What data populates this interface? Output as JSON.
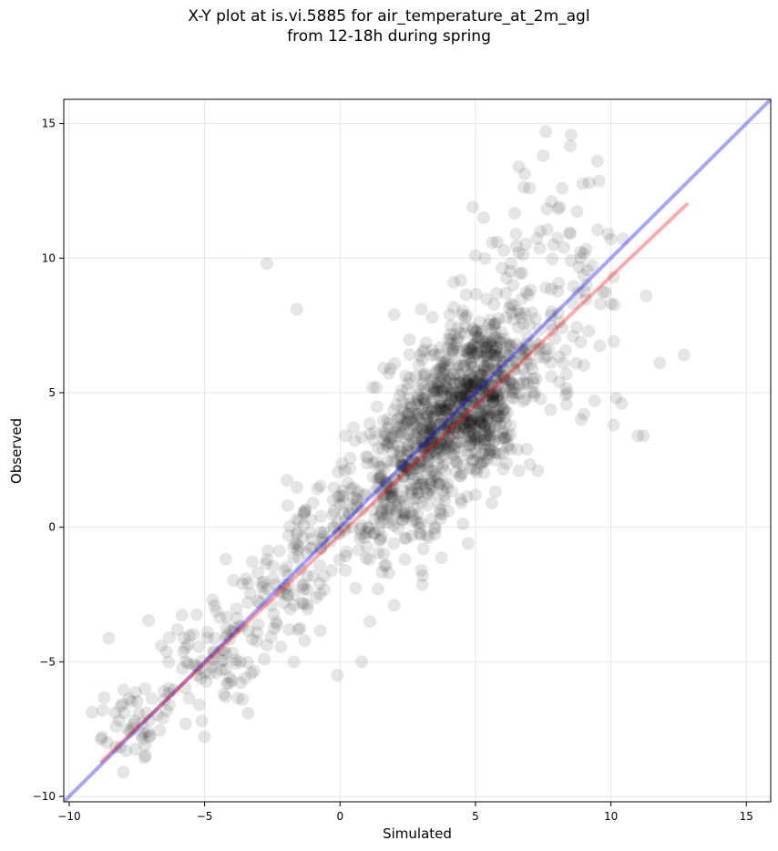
{
  "chart_data": {
    "type": "scatter",
    "title_line1": "X-Y plot at is.vi.5885 for air_temperature_at_2m_agl",
    "title_line2": "from 12-18h during spring",
    "xlabel": "Simulated",
    "ylabel": "Observed",
    "xlim": [
      -10.2,
      15.9
    ],
    "ylim": [
      -10.2,
      15.9
    ],
    "xticks": [
      -10,
      -5,
      0,
      5,
      10,
      15
    ],
    "yticks": [
      -10,
      -5,
      0,
      5,
      10,
      15
    ],
    "xtick_labels": [
      "−10",
      "−5",
      "0",
      "5",
      "10",
      "15"
    ],
    "ytick_labels": [
      "−10",
      "−5",
      "0",
      "5",
      "10",
      "15"
    ],
    "grid": true,
    "point_color": "#000000",
    "point_alpha": 0.1,
    "lines": [
      {
        "role": "one-to-one",
        "color": "#0000ff",
        "alpha": 0.35,
        "x": [
          -10.2,
          15.9
        ],
        "y": [
          -10.2,
          15.9
        ]
      },
      {
        "role": "regression",
        "color": "#ff0000",
        "alpha": 0.33,
        "x": [
          -8.8,
          12.8
        ],
        "y": [
          -8.7,
          12.0
        ]
      }
    ],
    "clusters": [
      {
        "cx": -7.5,
        "cy": -7.2,
        "sx": 0.9,
        "sy": 0.8,
        "n": 45
      },
      {
        "cx": -4.5,
        "cy": -4.6,
        "sx": 1.0,
        "sy": 1.0,
        "n": 75
      },
      {
        "cx": -2.0,
        "cy": -2.3,
        "sx": 0.9,
        "sy": 1.1,
        "n": 70
      },
      {
        "cx": 0.0,
        "cy": 0.2,
        "sx": 0.9,
        "sy": 1.3,
        "n": 95
      },
      {
        "cx": 2.3,
        "cy": 1.6,
        "sx": 0.8,
        "sy": 1.3,
        "n": 190
      },
      {
        "cx": 3.5,
        "cy": 3.6,
        "sx": 0.9,
        "sy": 1.4,
        "n": 330
      },
      {
        "cx": 5.0,
        "cy": 5.0,
        "sx": 0.8,
        "sy": 1.4,
        "n": 390
      },
      {
        "cx": 6.3,
        "cy": 6.6,
        "sx": 0.9,
        "sy": 1.6,
        "n": 170
      },
      {
        "cx": 8.3,
        "cy": 9.3,
        "sx": 1.2,
        "sy": 2.1,
        "n": 55
      }
    ],
    "points": [
      [
        7.6,
        14.7
      ],
      [
        7.5,
        13.8
      ],
      [
        6.6,
        13.4
      ],
      [
        9.5,
        13.6
      ],
      [
        7.0,
        12.6
      ],
      [
        8.2,
        12.6
      ],
      [
        9.2,
        12.8
      ],
      [
        4.9,
        11.9
      ],
      [
        5.3,
        11.5
      ],
      [
        7.8,
        12.1
      ],
      [
        8.1,
        11.9
      ],
      [
        8.5,
        10.9
      ],
      [
        -2.7,
        9.8
      ],
      [
        -1.6,
        8.1
      ],
      [
        11.3,
        8.6
      ],
      [
        10.1,
        6.9
      ],
      [
        11.8,
        6.1
      ],
      [
        12.7,
        6.4
      ],
      [
        9.4,
        4.7
      ],
      [
        10.2,
        4.8
      ],
      [
        10.4,
        4.6
      ],
      [
        11.0,
        3.4
      ],
      [
        11.2,
        3.4
      ],
      [
        10.1,
        3.8
      ],
      [
        8.9,
        4.0
      ],
      [
        9.0,
        4.2
      ],
      [
        0.8,
        -5.0
      ],
      [
        -0.1,
        -5.5
      ],
      [
        1.1,
        -3.5
      ],
      [
        -8.0,
        -9.1
      ],
      [
        -8.6,
        -8.0
      ],
      [
        -5.7,
        -7.3
      ],
      [
        -5.1,
        -7.2
      ],
      [
        -3.6,
        -6.4
      ],
      [
        -5.2,
        -6.6
      ],
      [
        0.5,
        3.7
      ],
      [
        0.2,
        3.4
      ],
      [
        1.2,
        5.2
      ],
      [
        2.0,
        7.9
      ],
      [
        1.8,
        -1.7
      ],
      [
        2.4,
        -1.2
      ],
      [
        3.0,
        -1.6
      ],
      [
        2.0,
        -2.9
      ],
      [
        1.4,
        -2.3
      ],
      [
        0.2,
        -1.6
      ],
      [
        -1.7,
        -5.0
      ],
      [
        -2.8,
        -4.9
      ],
      [
        -3.5,
        -5.6
      ],
      [
        -4.1,
        -5.8
      ],
      [
        -6.3,
        -4.1
      ],
      [
        -6.0,
        -3.8
      ],
      [
        -6.6,
        -4.4
      ],
      [
        -4.7,
        -2.7
      ],
      [
        -3.6,
        -2.1
      ],
      [
        -2.7,
        -1.2
      ],
      [
        -1.3,
        0.6
      ],
      [
        -1.0,
        0.9
      ],
      [
        -1.9,
        -0.3
      ],
      [
        -1.6,
        0.3
      ],
      [
        6.6,
        2.1
      ],
      [
        7.3,
        2.1
      ],
      [
        6.3,
        2.9
      ],
      [
        8.4,
        5.0
      ],
      [
        8.6,
        7.1
      ],
      [
        9.6,
        8.3
      ],
      [
        10.0,
        8.3
      ],
      [
        10.1,
        9.3
      ],
      [
        9.9,
        10.9
      ],
      [
        10.0,
        10.7
      ],
      [
        7.4,
        11.0
      ],
      [
        6.5,
        10.9
      ],
      [
        5.8,
        10.6
      ],
      [
        6.6,
        10.2
      ],
      [
        4.2,
        9.1
      ],
      [
        5.0,
        10.1
      ],
      [
        3.0,
        8.1
      ],
      [
        3.4,
        7.8
      ],
      [
        9.1,
        9.0
      ],
      [
        8.6,
        8.3
      ],
      [
        8.2,
        7.4
      ],
      [
        7.8,
        5.6
      ],
      [
        8.1,
        5.4
      ],
      [
        3.2,
        -0.3
      ],
      [
        3.7,
        0.3
      ],
      [
        4.0,
        0.6
      ],
      [
        5.0,
        1.2
      ],
      [
        5.6,
        0.9
      ],
      [
        -7.2,
        -6.0
      ],
      [
        -8.3,
        -6.9
      ],
      [
        -7.9,
        -8.3
      ],
      [
        -7.1,
        -7.6
      ],
      [
        -6.3,
        -6.6
      ],
      [
        -6.5,
        -6.1
      ],
      [
        -5.4,
        -5.1
      ],
      [
        -5.0,
        -5.4
      ]
    ]
  }
}
